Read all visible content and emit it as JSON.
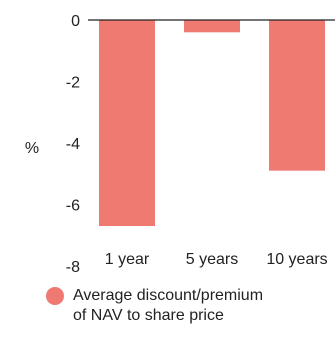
{
  "colors": {
    "bar": "#ee7a72",
    "axis": "#222222",
    "text": "#222222"
  },
  "chart_data": {
    "type": "bar",
    "categories": [
      "1 year",
      "5 years",
      "10 years"
    ],
    "series": [
      {
        "name": "Average discount/premium\nof NAV to share price",
        "values": [
          -6.7,
          -0.4,
          -4.9
        ]
      }
    ],
    "ylabel": "%",
    "ylim": [
      -8,
      0
    ],
    "yticks": [
      0,
      -2,
      -4,
      -6,
      -8
    ],
    "ytick_labels": [
      "0",
      "-2",
      "-4",
      "-6",
      "-8"
    ],
    "grid": false,
    "legend": "bottom"
  }
}
